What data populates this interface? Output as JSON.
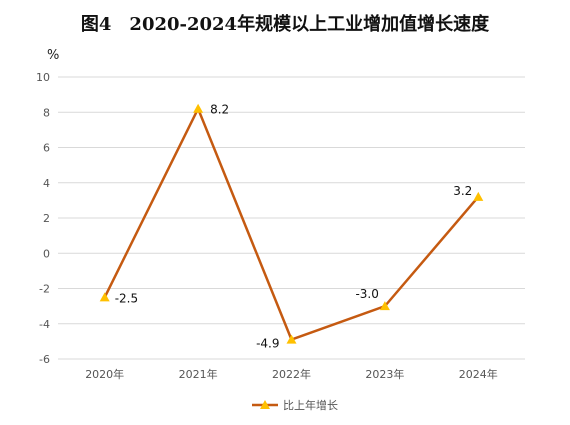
{
  "chart_data": {
    "type": "line",
    "title": "图4　2020-2024年规模以上工业增加值增长速度",
    "ylabel": "%",
    "xlabel": "",
    "categories": [
      "2020年",
      "2021年",
      "2022年",
      "2023年",
      "2024年"
    ],
    "series": [
      {
        "name": "比上年增长",
        "values": [
          -2.5,
          8.2,
          -4.9,
          -3.0,
          3.2
        ],
        "labels": [
          "-2.5",
          "8.2",
          "-4.9",
          "-3.0",
          "3.2"
        ]
      }
    ],
    "ylim": [
      -6,
      10
    ],
    "yticks": [
      10,
      8,
      6,
      4,
      2,
      0,
      -2,
      -4,
      -6
    ],
    "grid": true,
    "legend": "bottom",
    "colors": {
      "line": "#c55a11",
      "marker": "#ffc000",
      "grid": "#d9d9d9"
    }
  }
}
